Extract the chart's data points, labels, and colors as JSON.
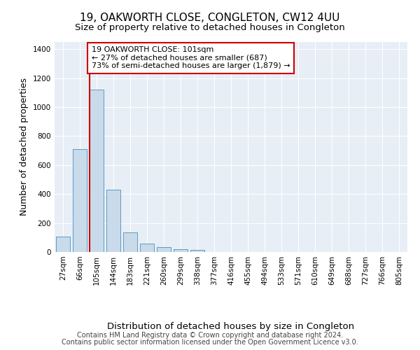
{
  "title": "19, OAKWORTH CLOSE, CONGLETON, CW12 4UU",
  "subtitle": "Size of property relative to detached houses in Congleton",
  "xlabel": "Distribution of detached houses by size in Congleton",
  "ylabel": "Number of detached properties",
  "bar_labels": [
    "27sqm",
    "66sqm",
    "105sqm",
    "144sqm",
    "183sqm",
    "221sqm",
    "260sqm",
    "299sqm",
    "338sqm",
    "377sqm",
    "416sqm",
    "455sqm",
    "494sqm",
    "533sqm",
    "571sqm",
    "610sqm",
    "649sqm",
    "688sqm",
    "727sqm",
    "766sqm",
    "805sqm"
  ],
  "bar_values": [
    105,
    710,
    1120,
    430,
    135,
    57,
    35,
    20,
    13,
    0,
    0,
    0,
    0,
    0,
    0,
    0,
    0,
    0,
    0,
    0,
    0
  ],
  "bar_color": "#c9daea",
  "bar_edge_color": "#5a9dc5",
  "property_line_color": "#cc0000",
  "annotation_line1": "19 OAKWORTH CLOSE: 101sqm",
  "annotation_line2": "← 27% of detached houses are smaller (687)",
  "annotation_line3": "73% of semi-detached houses are larger (1,879) →",
  "annotation_box_color": "#ffffff",
  "annotation_box_edge": "#cc0000",
  "ylim": [
    0,
    1450
  ],
  "yticks": [
    0,
    200,
    400,
    600,
    800,
    1000,
    1200,
    1400
  ],
  "footer_line1": "Contains HM Land Registry data © Crown copyright and database right 2024.",
  "footer_line2": "Contains public sector information licensed under the Open Government Licence v3.0.",
  "plot_bg_color": "#e8eef5",
  "title_fontsize": 11,
  "subtitle_fontsize": 9.5,
  "ylabel_fontsize": 9,
  "xlabel_fontsize": 9.5,
  "tick_fontsize": 7.5,
  "annotation_fontsize": 8,
  "footer_fontsize": 7
}
